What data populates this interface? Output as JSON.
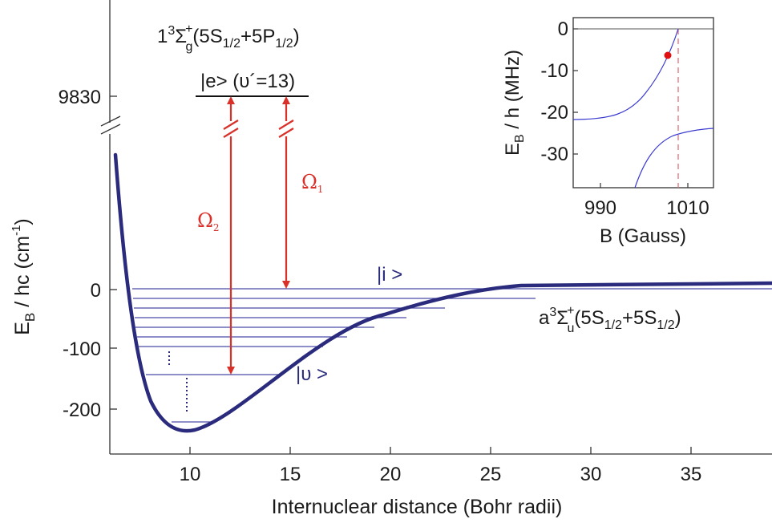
{
  "main": {
    "ylabel_main": "E",
    "ylabel_sub": "B",
    "ylabel_rest": " / hc  (cm",
    "ylabel_sup": "-1",
    "ylabel_close": ")",
    "xlabel": "Internuclear distance (Bohr radii)",
    "y_upper_tick": "9830",
    "y_ticks": [
      "0",
      "-100",
      "-200"
    ],
    "x_ticks": [
      "10",
      "15",
      "20",
      "25",
      "30",
      "35"
    ]
  },
  "excited_state": {
    "n": "1",
    "sup": "3",
    "sigma": "Σ",
    "sigma_sup": "+",
    "sigma_sub": "g",
    "open": "(5S",
    "s1_sub": "1/2",
    "plus_p": "+5P",
    "p_sub": "1/2",
    "close": ")",
    "ket": "|e> (υ´=13)"
  },
  "ground_state": {
    "a": "a",
    "sup": "3",
    "sigma": "Σ",
    "sigma_sup": "+",
    "sigma_sub": "u",
    "open": "(5S",
    "s1_sub": "1/2",
    "plus_s": "+5S",
    "s2_sub": "1/2",
    "close": ")"
  },
  "kets": {
    "initial": "|i >",
    "final": "|υ >"
  },
  "omegas": {
    "one": "Ω",
    "one_sub": "1",
    "two": "Ω",
    "two_sub": "2"
  },
  "inset": {
    "ylabel_main": "E",
    "ylabel_sub": "B",
    "ylabel_rest": " / h (MHz)",
    "xlabel": "B (Gauss)",
    "y_ticks": [
      "0",
      "-10",
      "-20",
      "-30"
    ],
    "x_ticks": [
      "990",
      "1010"
    ]
  },
  "colors": {
    "curve": "#2b2b7e",
    "levels": "#4a4aa8",
    "laser": "#d9302a",
    "dashed": "#e0707a"
  }
}
